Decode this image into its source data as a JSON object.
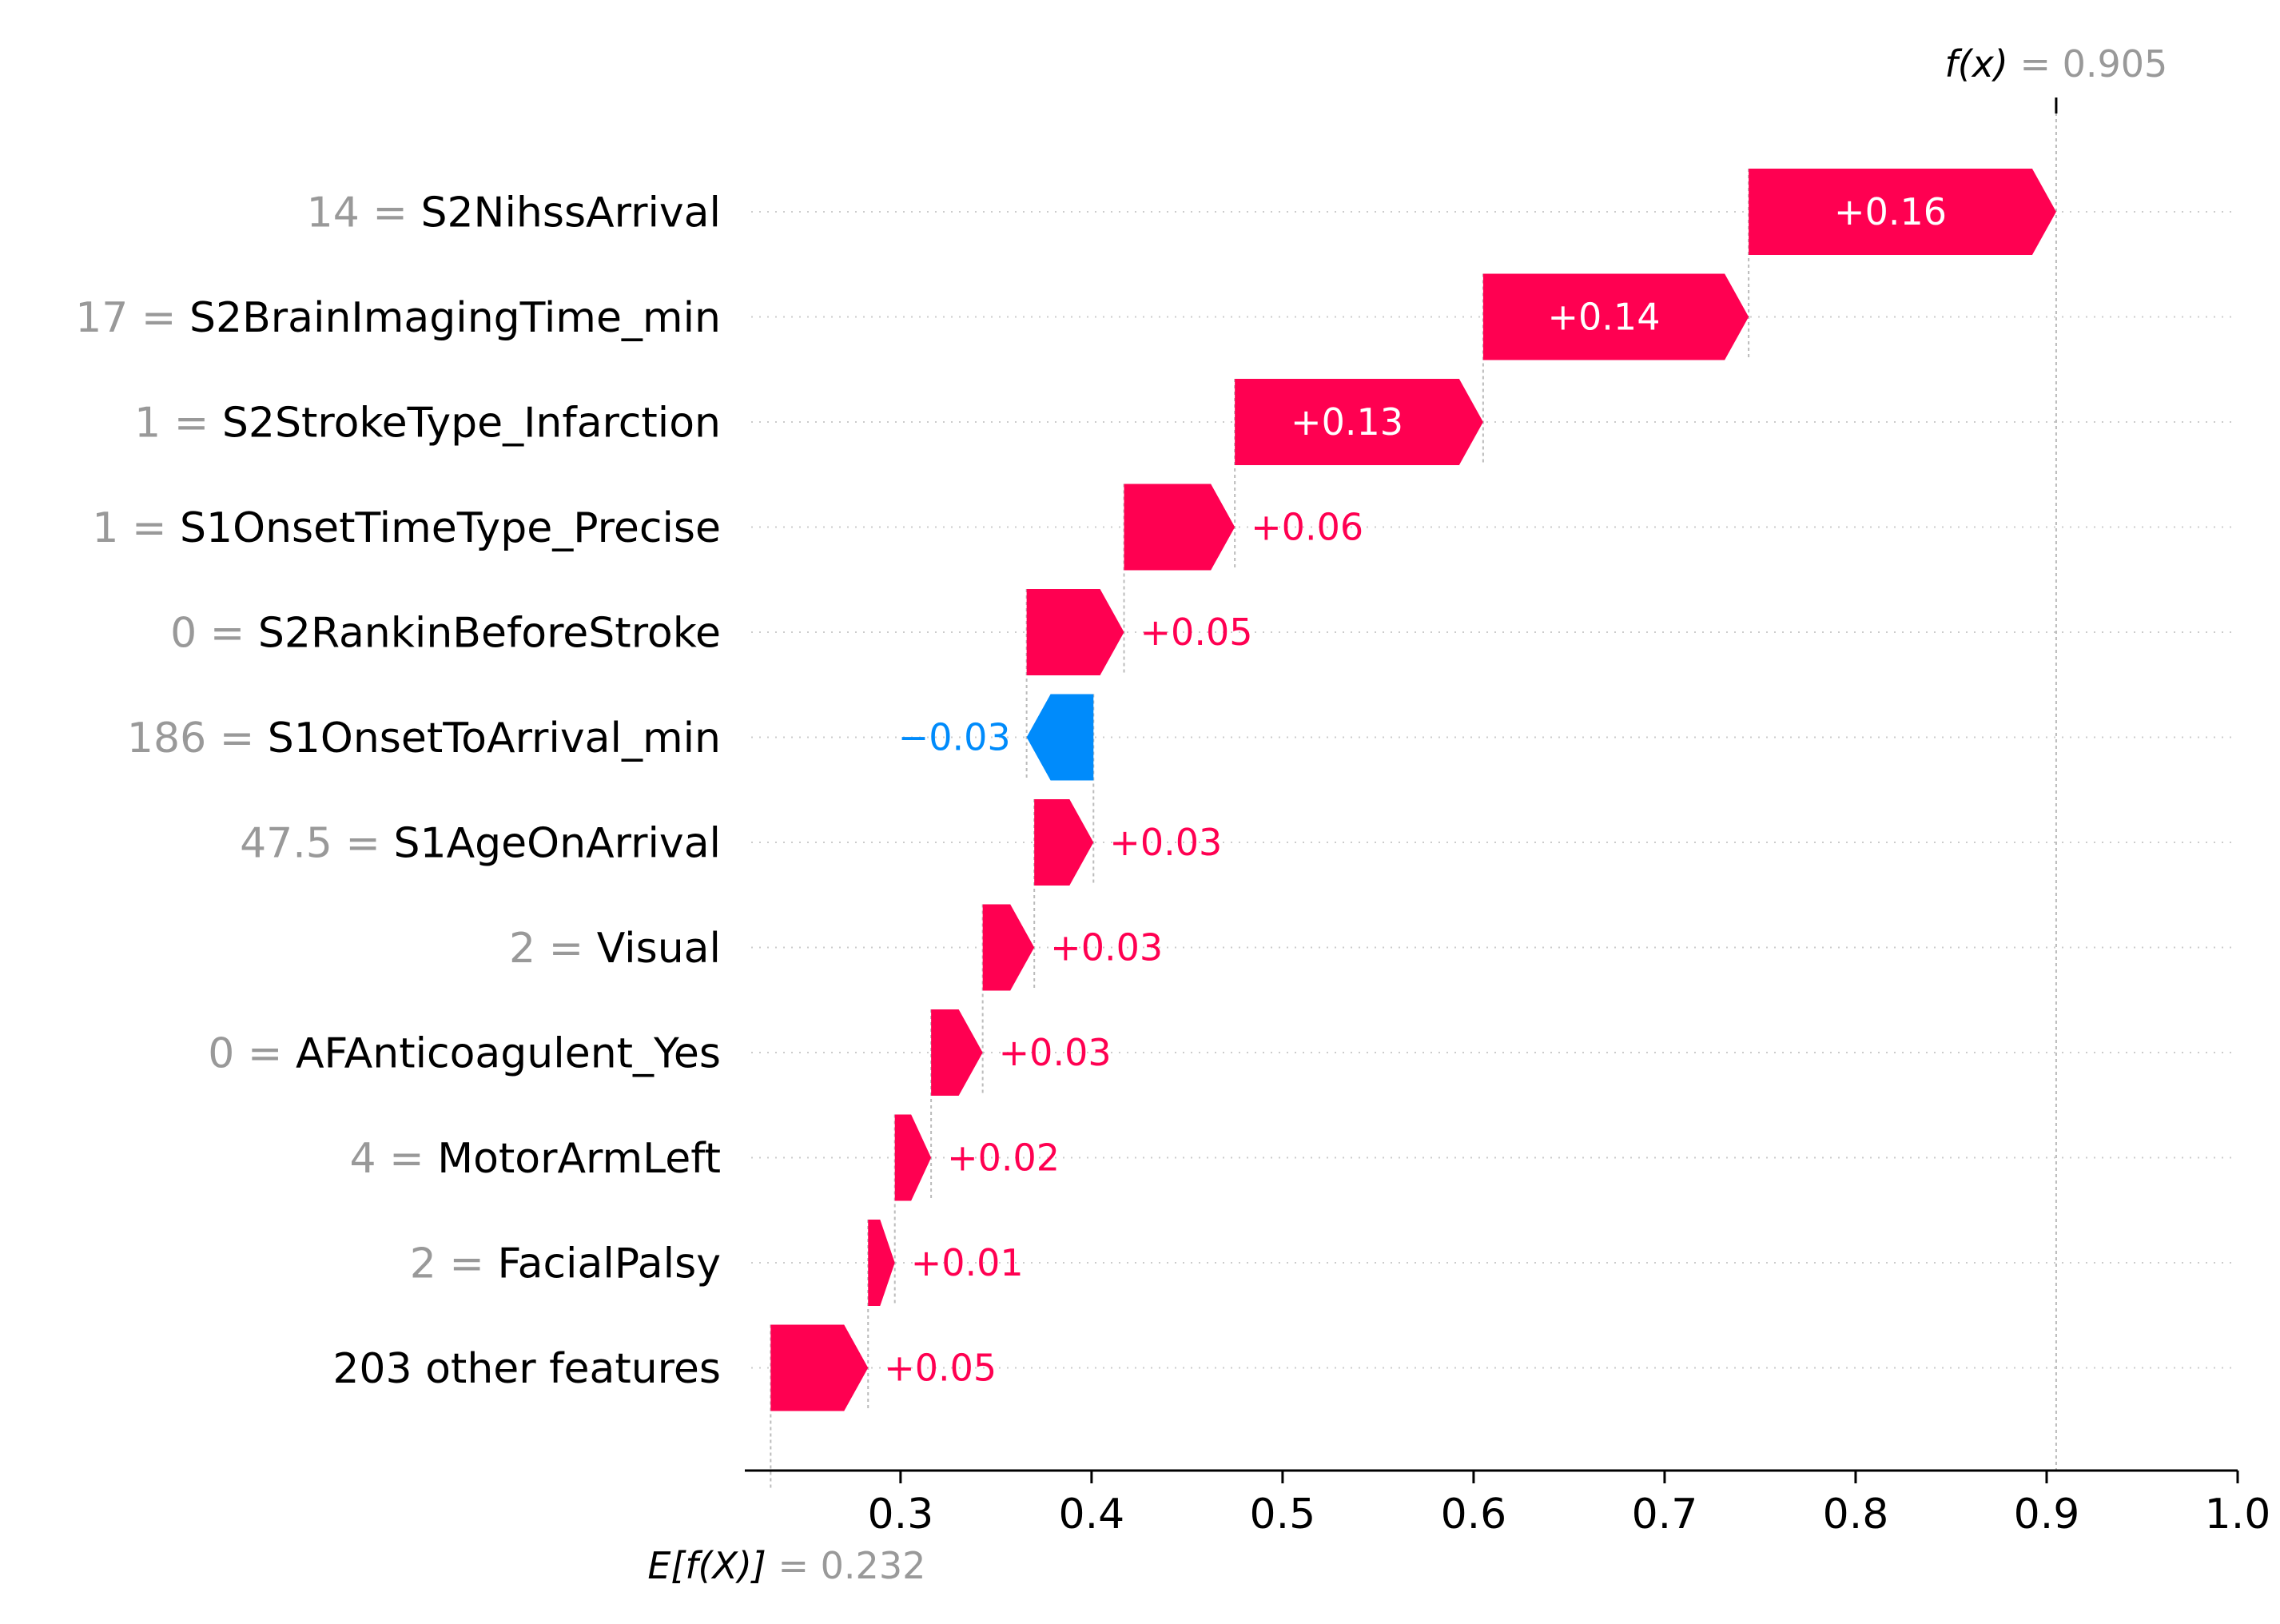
{
  "chart_data": {
    "type": "waterfall",
    "title": "",
    "xlabel": "",
    "ylabel": "",
    "xlim": [
      0.226,
      1.0
    ],
    "xticks": [
      0.3,
      0.4,
      0.5,
      0.6,
      0.7,
      0.8,
      0.9,
      1.0
    ],
    "base_value": 0.232,
    "output_value": 0.905,
    "base_label": {
      "prefix": "E[f(X)]",
      "value": "= 0.232"
    },
    "output_label": {
      "prefix": "f(x)",
      "value": "= 0.905"
    },
    "colors": {
      "positive": "#ff0051",
      "negative": "#008bfb",
      "muted": "#999999"
    },
    "features": [
      {
        "value": "14",
        "name": "S2NihssArrival",
        "contribution": 0.16,
        "start": 0.744,
        "end": 0.905,
        "label": "+0.16"
      },
      {
        "value": "17",
        "name": "S2BrainImagingTime_min",
        "contribution": 0.14,
        "start": 0.605,
        "end": 0.744,
        "label": "+0.14"
      },
      {
        "value": "1",
        "name": "S2StrokeType_Infarction",
        "contribution": 0.13,
        "start": 0.475,
        "end": 0.605,
        "label": "+0.13"
      },
      {
        "value": "1",
        "name": "S1OnsetTimeType_Precise",
        "contribution": 0.06,
        "start": 0.417,
        "end": 0.475,
        "label": "+0.06"
      },
      {
        "value": "0",
        "name": "S2RankinBeforeStroke",
        "contribution": 0.05,
        "start": 0.366,
        "end": 0.417,
        "label": "+0.05"
      },
      {
        "value": "186",
        "name": "S1OnsetToArrival_min",
        "contribution": -0.03,
        "start": 0.401,
        "end": 0.366,
        "label": "−0.03"
      },
      {
        "value": "47.5",
        "name": "S1AgeOnArrival",
        "contribution": 0.03,
        "start": 0.37,
        "end": 0.401,
        "label": "+0.03"
      },
      {
        "value": "2",
        "name": "Visual",
        "contribution": 0.03,
        "start": 0.343,
        "end": 0.37,
        "label": "+0.03"
      },
      {
        "value": "0",
        "name": "AFAnticoagulent_Yes",
        "contribution": 0.03,
        "start": 0.316,
        "end": 0.343,
        "label": "+0.03"
      },
      {
        "value": "4",
        "name": "MotorArmLeft",
        "contribution": 0.02,
        "start": 0.297,
        "end": 0.316,
        "label": "+0.02"
      },
      {
        "value": "2",
        "name": "FacialPalsy",
        "contribution": 0.01,
        "start": 0.283,
        "end": 0.297,
        "label": "+0.01"
      },
      {
        "value": "",
        "name": "203 other features",
        "contribution": 0.05,
        "start": 0.232,
        "end": 0.283,
        "label": "+0.05"
      }
    ]
  }
}
